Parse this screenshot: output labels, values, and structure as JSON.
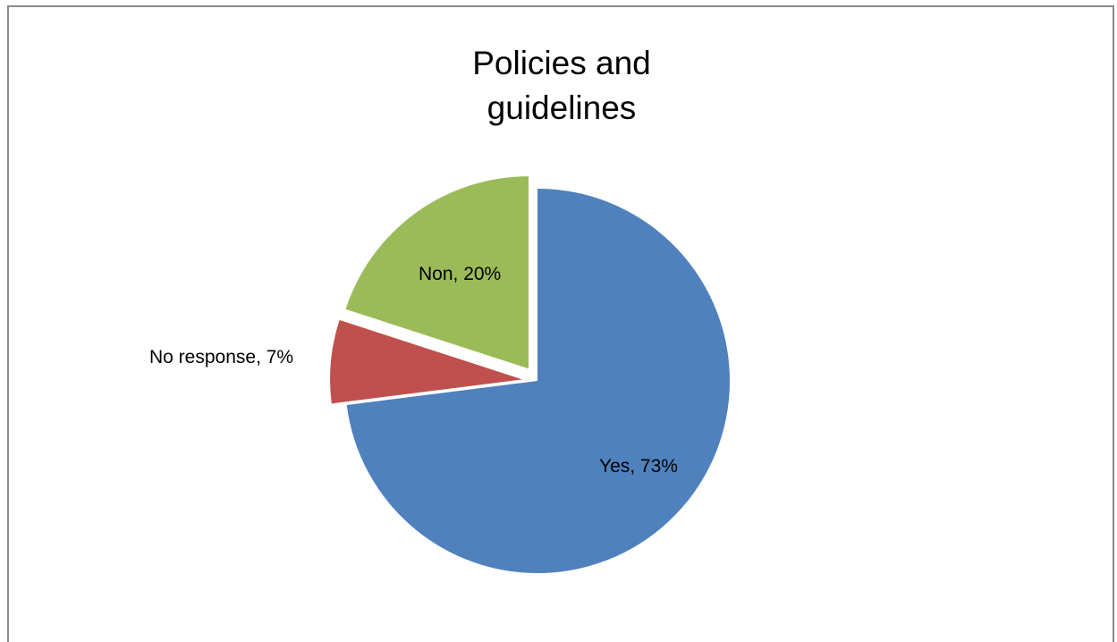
{
  "chart_data": {
    "type": "pie",
    "title_lines": [
      "Policies and",
      "guidelines"
    ],
    "slices": [
      {
        "label": "Yes",
        "value": 73,
        "color": "#4f81bd",
        "data_label": "Yes, 73%"
      },
      {
        "label": "No response",
        "value": 7,
        "color": "#c0504d",
        "data_label": "No response, 7%"
      },
      {
        "label": "Non",
        "value": 20,
        "color": "#9bbb59",
        "data_label": "Non, 20%"
      }
    ],
    "exploded": [
      "No response",
      "Non"
    ]
  }
}
